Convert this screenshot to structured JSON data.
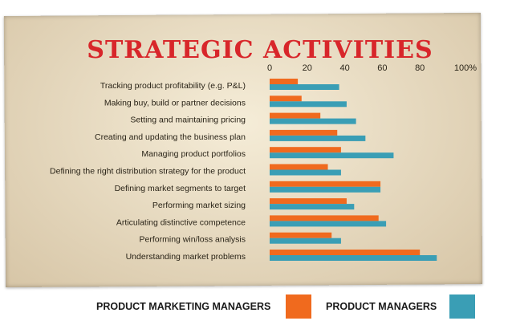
{
  "chart_data": {
    "type": "bar",
    "orientation": "horizontal",
    "title": "STRATEGIC ACTIVITIES",
    "xlim": [
      0,
      100
    ],
    "ticks": [
      "0",
      "20",
      "40",
      "60",
      "80",
      "100%"
    ],
    "categories": [
      "Tracking product profitability (e.g. P&L)",
      "Making buy, build or partner decisions",
      "Setting and maintaining pricing",
      "Creating and updating the business plan",
      "Managing product portfolios",
      "Defining the right distribution strategy for the product",
      "Defining market segments to target",
      "Performing market sizing",
      "Articulating distinctive competence",
      "Performing win/loss analysis",
      "Understanding market problems"
    ],
    "series": [
      {
        "name": "PRODUCT MARKETING MANAGERS",
        "color": "#f06a1e",
        "values": [
          15,
          17,
          27,
          36,
          38,
          31,
          59,
          41,
          58,
          33,
          80
        ]
      },
      {
        "name": "PRODUCT MANAGERS",
        "color": "#3a9eb5",
        "values": [
          37,
          41,
          46,
          51,
          66,
          38,
          59,
          45,
          62,
          38,
          89
        ]
      }
    ],
    "grid": false,
    "legend": "bottom"
  }
}
